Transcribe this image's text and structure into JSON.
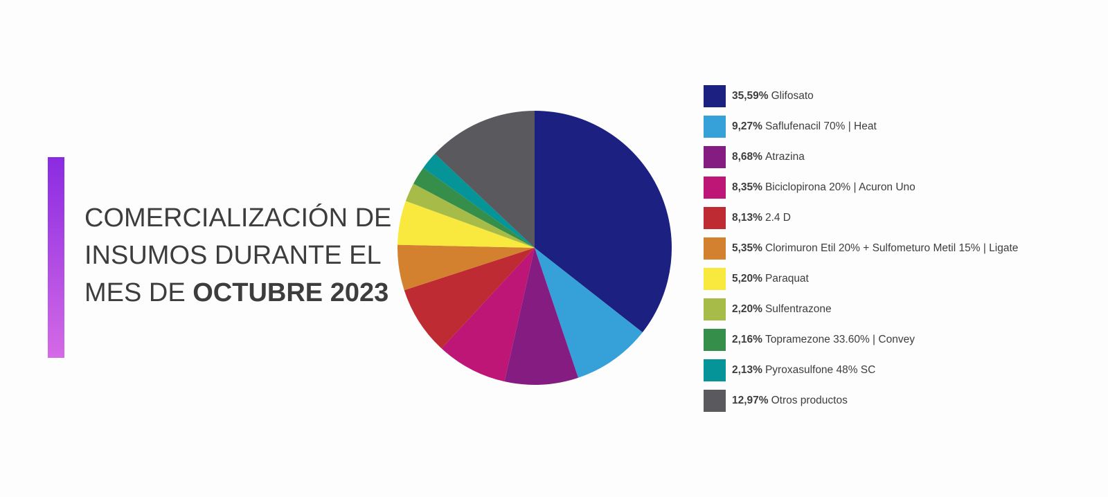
{
  "title": {
    "line1": "COMERCIALIZACIÓN DE",
    "line2": "INSUMOS DURANTE EL",
    "line3_prefix": "MES DE ",
    "line3_bold": "OCTUBRE 2023"
  },
  "colors": {
    "accent_top": "#8a2be2",
    "accent_bottom": "#d46ae6",
    "text": "#3d3d3d"
  },
  "chart_data": {
    "type": "pie",
    "start_angle_deg": 0,
    "direction": "clockwise",
    "slices": [
      {
        "label": "Glifosato",
        "value": 35.59,
        "display": "35,59%",
        "color": "#1c2080"
      },
      {
        "label": "Saflufenacil 70% | Heat",
        "value": 9.27,
        "display": "9,27%",
        "color": "#36a1d9"
      },
      {
        "label": "Atrazina",
        "value": 8.68,
        "display": "8,68%",
        "color": "#841c82"
      },
      {
        "label": "Biciclopirona 20% | Acuron Uno",
        "value": 8.35,
        "display": "8,35%",
        "color": "#bd1677"
      },
      {
        "label": "2.4 D",
        "value": 8.13,
        "display": "8,13%",
        "color": "#be2b33"
      },
      {
        "label": "Clorimuron Etil 20% + Sulfometuro Metil 15% | Ligate",
        "value": 5.35,
        "display": "5,35%",
        "color": "#d4812f"
      },
      {
        "label": "Paraquat",
        "value": 5.2,
        "display": "5,20%",
        "color": "#f9e93f"
      },
      {
        "label": "Sulfentrazone",
        "value": 2.2,
        "display": "2,20%",
        "color": "#a6bb48"
      },
      {
        "label": "Topramezone 33.60% | Convey",
        "value": 2.16,
        "display": "2,16%",
        "color": "#368e4b"
      },
      {
        "label": "Pyroxasulfone 48% SC",
        "value": 2.13,
        "display": "2,13%",
        "color": "#059498"
      },
      {
        "label": "Otros productos",
        "value": 12.97,
        "display": "12,97%",
        "color": "#59595e"
      }
    ],
    "legend_position": "right"
  }
}
